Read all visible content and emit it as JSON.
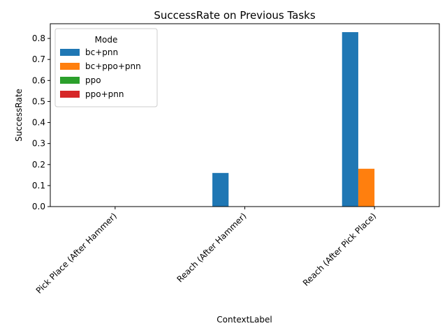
{
  "chart_data": {
    "type": "bar",
    "title": "SuccessRate on Previous Tasks",
    "xlabel": "ContextLabel",
    "ylabel": "SuccessRate",
    "categories": [
      "Pick Place (After Hammer)",
      "Reach (After Hammer)",
      "Reach (After Pick Place)"
    ],
    "series": [
      {
        "name": "bc+pnn",
        "color": "#1f77b4",
        "values": [
          0.0,
          0.16,
          0.83
        ]
      },
      {
        "name": "bc+ppo+pnn",
        "color": "#ff7f0e",
        "values": [
          0.0,
          0.0,
          0.18
        ]
      },
      {
        "name": "ppo",
        "color": "#2ca02c",
        "values": [
          0.0,
          0.0,
          0.0
        ]
      },
      {
        "name": "ppo+pnn",
        "color": "#d62728",
        "values": [
          0.0,
          0.0,
          0.0
        ]
      }
    ],
    "ylim": [
      0,
      0.87
    ],
    "yticks": [
      0.0,
      0.1,
      0.2,
      0.3,
      0.4,
      0.5,
      0.6,
      0.7,
      0.8
    ],
    "ytick_labels": [
      "0.0",
      "0.1",
      "0.2",
      "0.3",
      "0.4",
      "0.5",
      "0.6",
      "0.7",
      "0.8"
    ],
    "grid": false,
    "legend": {
      "title": "Mode",
      "placement": "top-left"
    }
  }
}
